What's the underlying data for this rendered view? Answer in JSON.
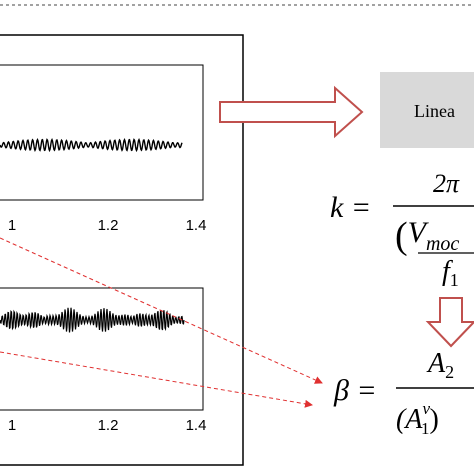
{
  "plots": [
    {
      "xticks": [
        "1",
        "1.2",
        "1.4"
      ]
    },
    {
      "xticks": [
        "1",
        "1.2",
        "1.4"
      ]
    }
  ],
  "box": {
    "label": "Linea"
  },
  "equations": {
    "k": {
      "lhs": "k =",
      "numerator": "2π",
      "den_open": "(",
      "den_var": "V",
      "den_sub": "moc",
      "den_bottom": "f",
      "den_bottom_sub": "1"
    },
    "beta": {
      "lhs": "β =",
      "numerator": "A",
      "num_sub": "2",
      "den_open": "(A",
      "den_sub": "1",
      "den_sup": "v",
      "den_close": ")"
    }
  }
}
